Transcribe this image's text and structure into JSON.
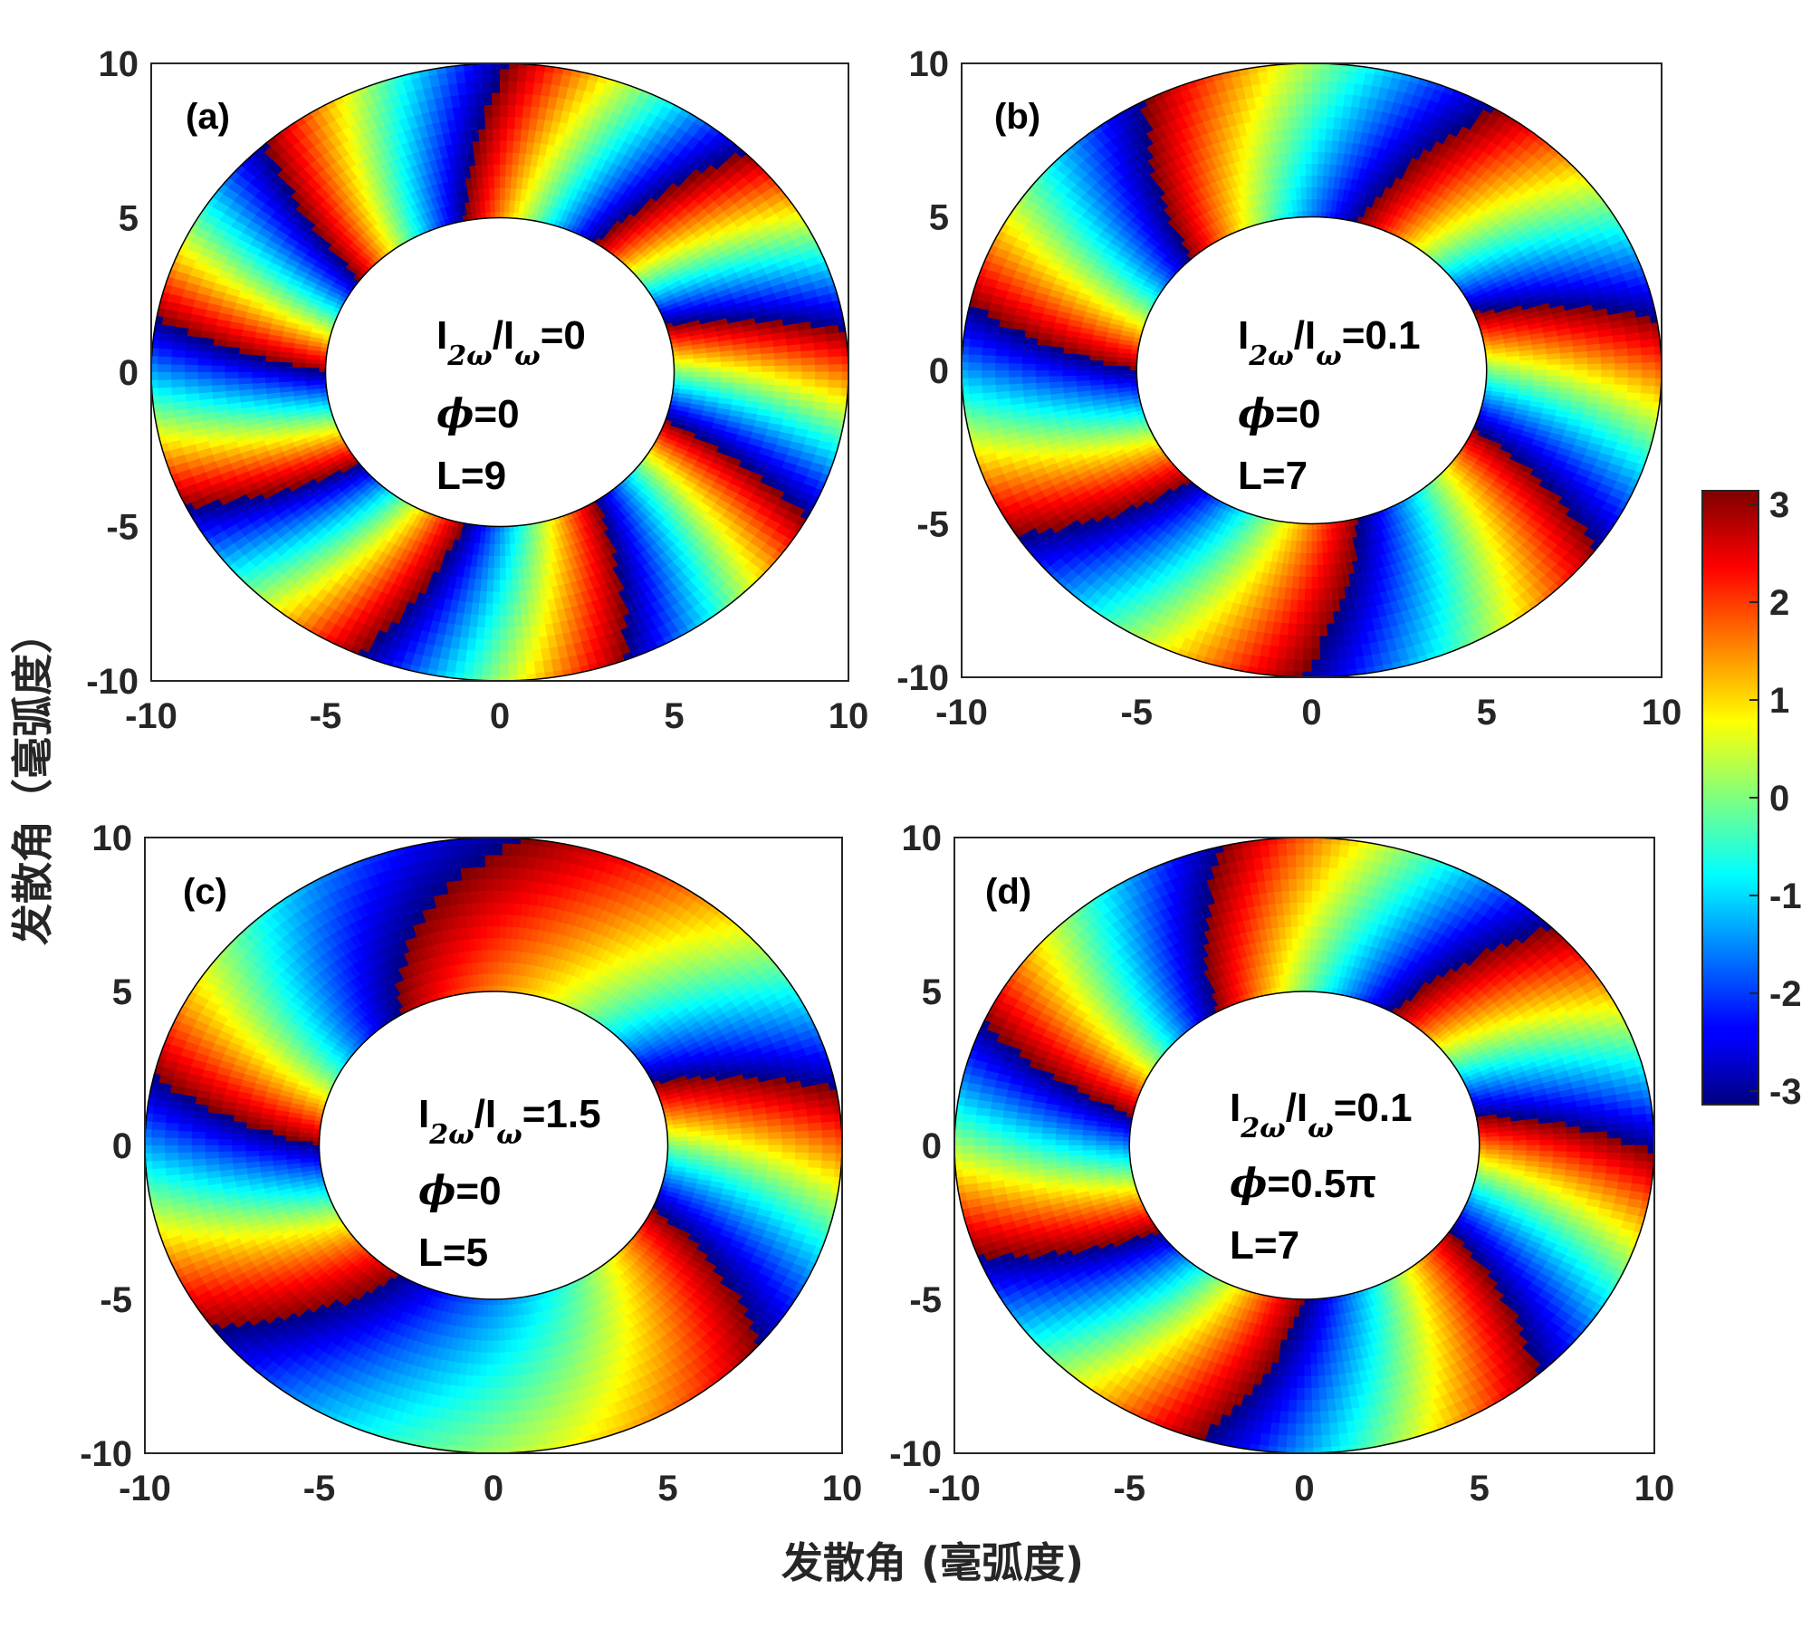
{
  "chart_data": {
    "type": "heatmap",
    "description_units": "phase (rad)",
    "xlabel": "发散角 (毫弧度)",
    "ylabel": "发散角（毫弧度）",
    "xlim": [
      -10,
      10
    ],
    "ylim": [
      -10,
      10
    ],
    "xticks": [
      "-10",
      "-5",
      "0",
      "5",
      "10"
    ],
    "yticks": [
      "10",
      "5",
      "0",
      "-5",
      "-10"
    ],
    "annulus": {
      "inner_radius": 5,
      "outer_radius": 10
    },
    "colorbar": {
      "colormap": "jet",
      "range": [
        -3.14,
        3.14
      ],
      "ticks": [
        "3",
        "2",
        "1",
        "0",
        "-1",
        "-2",
        "-3"
      ]
    },
    "panels": [
      {
        "label": "(a)",
        "ratio_base": "I",
        "ratio_sub1": "2ω",
        "ratio_mid": "/I",
        "ratio_sub2": "ω",
        "ratio_value": "=0",
        "phi_symbol": "ϕ",
        "phi_value": "=0",
        "L_text": "L=9",
        "ratio": 0,
        "phi_over_pi": 0,
        "L": 9
      },
      {
        "label": "(b)",
        "ratio_base": "I",
        "ratio_sub1": "2ω",
        "ratio_mid": "/I",
        "ratio_sub2": "ω",
        "ratio_value": "=0.1",
        "phi_symbol": "ϕ",
        "phi_value": "=0",
        "L_text": "L=7",
        "ratio": 0.1,
        "phi_over_pi": 0,
        "L": 7
      },
      {
        "label": "(c)",
        "ratio_base": "I",
        "ratio_sub1": "2ω",
        "ratio_mid": "/I",
        "ratio_sub2": "ω",
        "ratio_value": "=1.5",
        "phi_symbol": "ϕ",
        "phi_value": "=0",
        "L_text": "L=5",
        "ratio": 1.5,
        "phi_over_pi": 0,
        "L": 5
      },
      {
        "label": "(d)",
        "ratio_base": "I",
        "ratio_sub1": "2ω",
        "ratio_mid": "/I",
        "ratio_sub2": "ω",
        "ratio_value": "=0.1",
        "phi_symbol": "ϕ",
        "phi_value": "=0.5π",
        "L_text": "L=7",
        "ratio": 0.1,
        "phi_over_pi": 0.5,
        "L": 7
      }
    ]
  }
}
